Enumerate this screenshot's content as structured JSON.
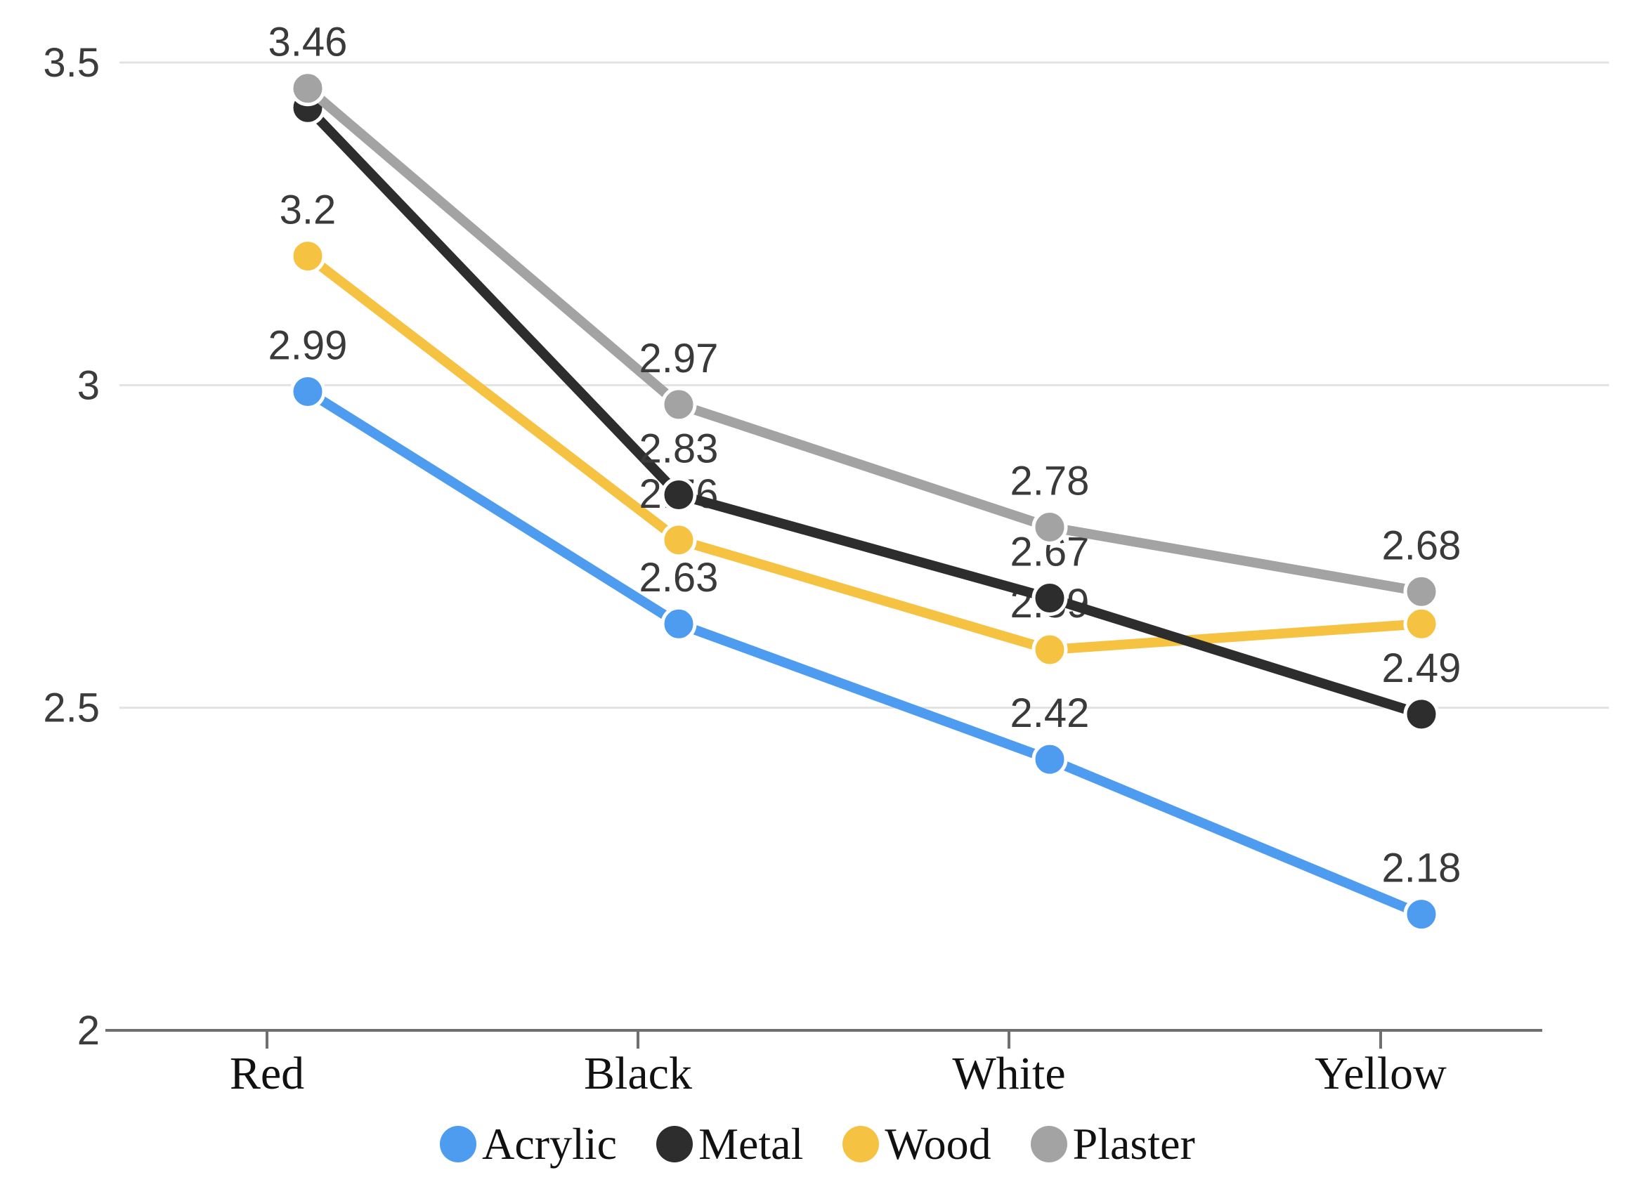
{
  "chart_data": {
    "type": "line",
    "categories": [
      "Red",
      "Black",
      "White",
      "Yellow"
    ],
    "series": [
      {
        "name": "Acrylic",
        "color": "#4E9CEF",
        "values": [
          2.99,
          2.63,
          2.42,
          2.18
        ],
        "labels": [
          "2.99",
          "2.63",
          "2.42",
          "2.18"
        ],
        "draw_order": 1
      },
      {
        "name": "Metal",
        "color": "#2D2D2D",
        "values": [
          3.43,
          2.83,
          2.67,
          2.49
        ],
        "labels": [
          null,
          "2.83",
          "2.67",
          "2.49"
        ],
        "draw_order": 3
      },
      {
        "name": "Wood",
        "color": "#F5C242",
        "values": [
          3.2,
          2.76,
          2.59,
          2.63
        ],
        "labels": [
          "3.2",
          "2.76",
          "2.59",
          null
        ],
        "draw_order": 2
      },
      {
        "name": "Plaster",
        "color": "#A3A3A3",
        "values": [
          3.46,
          2.97,
          2.78,
          2.68
        ],
        "labels": [
          "3.46",
          "2.97",
          "2.78",
          "2.68"
        ],
        "draw_order": 4
      }
    ],
    "y_axis": {
      "min": 2,
      "max": 3.5,
      "ticks": [
        3.5,
        3,
        2.5,
        2
      ],
      "tick_labels": [
        "3.5",
        "3",
        "2.5",
        "2"
      ]
    },
    "x_axis": {
      "tick_labels": [
        "Red",
        "Black",
        "White",
        "Yellow"
      ]
    },
    "legend": {
      "position": "bottom",
      "items": [
        "Acrylic",
        "Metal",
        "Wood",
        "Plaster"
      ]
    },
    "grid": true,
    "title": "",
    "xlabel": "",
    "ylabel": ""
  },
  "style": {
    "gridline_color": "#e2e2e2",
    "axis_color": "#6f6f6f",
    "data_label_color": "#3a3a3a",
    "y_label_color": "#3c3c3c",
    "category_label_color": "#111111",
    "background": "#ffffff",
    "point_halo_color": "#ffffff"
  }
}
